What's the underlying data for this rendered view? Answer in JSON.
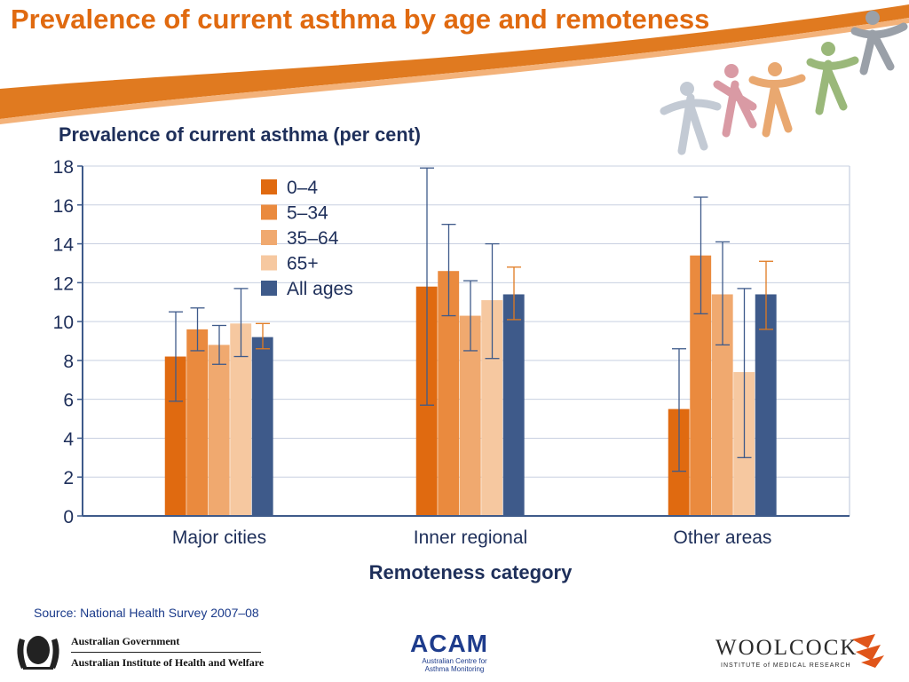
{
  "slide": {
    "title": "Prevalence of current asthma by age and remoteness"
  },
  "chart_data": {
    "type": "bar",
    "title": "Prevalence of current asthma (per cent)",
    "xlabel": "Remoteness category",
    "ylabel": "",
    "ylim": [
      0,
      18
    ],
    "yticks": [
      "0",
      "2",
      "4",
      "6",
      "8",
      "10",
      "12",
      "14",
      "16",
      "18"
    ],
    "grid": true,
    "legend_position": "top-left",
    "categories": [
      "Major cities",
      "Inner regional",
      "Other areas"
    ],
    "series": [
      {
        "name": "0–4",
        "color": "#e06a10",
        "values": [
          8.2,
          11.8,
          5.5
        ],
        "error_low": [
          5.9,
          5.7,
          2.3
        ],
        "error_high": [
          10.5,
          17.9,
          8.6
        ]
      },
      {
        "name": "5–34",
        "color": "#ea8a3e",
        "values": [
          9.6,
          12.6,
          13.4
        ],
        "error_low": [
          8.5,
          10.3,
          10.4
        ],
        "error_high": [
          10.7,
          15.0,
          16.4
        ]
      },
      {
        "name": "35–64",
        "color": "#f0a96f",
        "values": [
          8.8,
          10.3,
          11.4
        ],
        "error_low": [
          7.8,
          8.5,
          8.8
        ],
        "error_high": [
          9.8,
          12.1,
          14.1
        ]
      },
      {
        "name": "65+",
        "color": "#f6c8a0",
        "values": [
          9.9,
          11.1,
          7.4
        ],
        "error_low": [
          8.2,
          8.1,
          3.0
        ],
        "error_high": [
          11.7,
          14.0,
          11.7
        ]
      },
      {
        "name": "All ages",
        "color": "#3e5a8a",
        "values": [
          9.2,
          11.4,
          11.4
        ],
        "error_low": [
          8.6,
          10.1,
          9.6
        ],
        "error_high": [
          9.9,
          12.8,
          13.1
        ]
      }
    ],
    "error_bar_color": "#3e5a8a",
    "error_bar_color_all_ages": "#e07a20"
  },
  "footer": {
    "source": "Source: National Health Survey 2007–08",
    "gov_line1": "Australian Government",
    "gov_line2": "Australian Institute of Health and Welfare",
    "acam_name": "ACAM",
    "acam_sub": "Australian Centre for Asthma Monitoring",
    "woolcock_name": "WOOLCOCK",
    "woolcock_sub": "INSTITUTE of MEDICAL RESEARCH"
  }
}
